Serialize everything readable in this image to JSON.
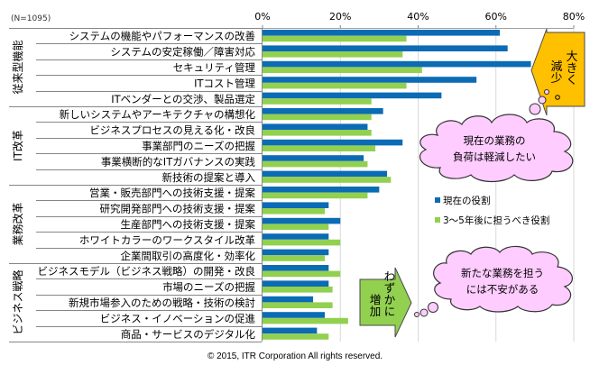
{
  "chart_data": {
    "type": "bar",
    "orientation": "horizontal",
    "title": "",
    "sample_note": "(N=1095)",
    "xlabel": "",
    "ylabel": "",
    "xlim": [
      0,
      80
    ],
    "x_ticks": [
      "0%",
      "20%",
      "40%",
      "60%",
      "80%"
    ],
    "x_tick_values": [
      0,
      20,
      40,
      60,
      80
    ],
    "grid": true,
    "legend_position": "right",
    "groups": [
      {
        "label": "従来型機能",
        "start": 0,
        "count": 5
      },
      {
        "label": "IT改革",
        "start": 5,
        "count": 5
      },
      {
        "label": "業務改革",
        "start": 10,
        "count": 5
      },
      {
        "label": "ビジネス戦略",
        "start": 15,
        "count": 5
      }
    ],
    "categories": [
      "システムの機能やパフォーマンスの改善",
      "システムの安定稼働／障害対応",
      "セキュリティ管理",
      "ITコスト管理",
      "ITベンダーとの交渉、製品選定",
      "新しいシステムやアーキテクチャの構想化",
      "ビジネスプロセスの見える化・改良",
      "事業部門のニーズの把握",
      "事業横断的なITガバナンスの実践",
      "新技術の提案と導入",
      "営業・販売部門への技術支援・提案",
      "研究開発部門への技術支援・提案",
      "生産部門への技術支援・提案",
      "ホワイトカラーのワークスタイル改革",
      "企業間取引の高度化・効率化",
      "ビジネスモデル（ビジネス戦略）の開発・改良",
      "市場のニーズの把握",
      "新規市場参入のための戦略・技術の検討",
      "ビジネス・イノベーションの促進",
      "商品・サービスのデジタル化"
    ],
    "series": [
      {
        "name": "現在の役割",
        "color": "#0B6BB5",
        "values": [
          61,
          63,
          69,
          55,
          46,
          31,
          27,
          36,
          26,
          32,
          30,
          17,
          20,
          17,
          17,
          17,
          17,
          13,
          16,
          14
        ]
      },
      {
        "name": "3〜5年後に担うべき役割",
        "color": "#92D050",
        "values": [
          37,
          36,
          41,
          37,
          28,
          28,
          28,
          29,
          27,
          33,
          27,
          16,
          17,
          20,
          16,
          20,
          18,
          18,
          22,
          17
        ]
      }
    ],
    "annotations": [
      {
        "type": "arrow-left",
        "text": "大きく減少",
        "lines": [
          "大き",
          "減少",
          "く"
        ],
        "color": "#FFC000"
      },
      {
        "type": "arrow-right",
        "text": "わずかに増加",
        "lines": [
          "わずかに",
          "増加"
        ],
        "color": "#92D050"
      },
      {
        "type": "thought-cloud",
        "text": "現在の業務の負荷は軽減したい",
        "lines": [
          "現在の業務の",
          "負荷は軽減したい"
        ],
        "color": "#FFCCFF"
      },
      {
        "type": "thought-cloud",
        "text": "新たな業務を担うには不安がある",
        "lines": [
          "新たな業務を担う",
          "には不安がある"
        ],
        "color": "#FFCCFF"
      }
    ]
  },
  "footer": "© 2015, ITR Corporation  All rights reserved."
}
